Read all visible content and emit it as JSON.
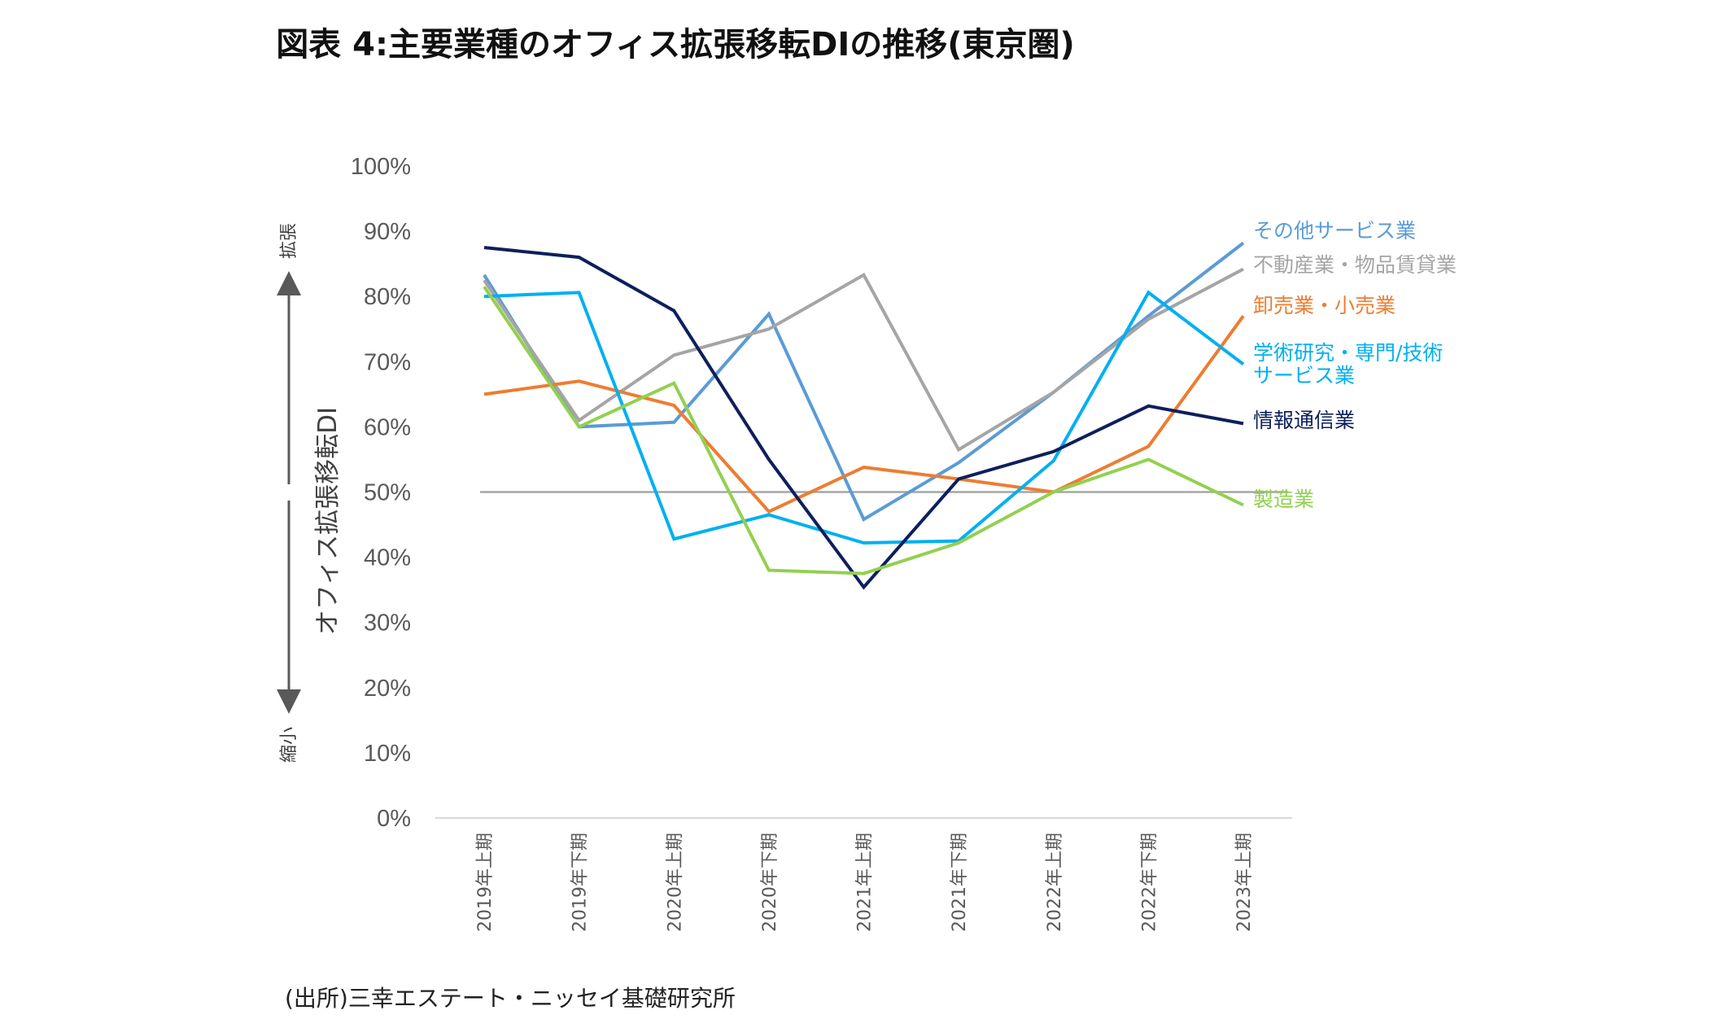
{
  "title": "図表 4:主要業種のオフィス拡張移転DIの推移(東京圏)",
  "source": "(出所)三幸エステート・ニッセイ基礎研究所",
  "chart_data": {
    "type": "line",
    "ylabel": "オフィス拡張移転DI",
    "y_top_note": "拡張",
    "y_bottom_note": "縮小",
    "ylim": [
      0,
      100
    ],
    "y_ticks": [
      "0%",
      "10%",
      "20%",
      "30%",
      "40%",
      "50%",
      "60%",
      "70%",
      "80%",
      "90%",
      "100%"
    ],
    "reference_line": 50,
    "categories": [
      "2019年上期",
      "2019年下期",
      "2020年上期",
      "2020年下期",
      "2021年上期",
      "2021年下期",
      "2022年上期",
      "2022年下期",
      "2023年上期"
    ],
    "series": [
      {
        "name": "その他サービス業",
        "color": "#5B9BD5",
        "values": [
          83.3,
          60,
          60.7,
          77.3,
          45.8,
          54.5,
          65.3,
          77,
          88.2
        ]
      },
      {
        "name": "不動産業・物品賃貸業",
        "color": "#A5A5A5",
        "values": [
          82.5,
          61,
          71,
          75,
          83.3,
          56.5,
          65.3,
          76.5,
          84.2
        ]
      },
      {
        "name": "卸売業・小売業",
        "color": "#ED7D31",
        "values": [
          65,
          67,
          63.3,
          47,
          53.8,
          52,
          50,
          57,
          77
        ]
      },
      {
        "name": "学術研究・専門/技術サービス業",
        "label_lines": [
          "学術研究・専門/技術",
          "サービス業"
        ],
        "color": "#00B0F0",
        "values": [
          80,
          80.6,
          42.8,
          46.5,
          42.2,
          42.5,
          54.8,
          80.6,
          69.6
        ]
      },
      {
        "name": "情報通信業",
        "color": "#0D1F5C",
        "values": [
          87.5,
          86,
          77.8,
          55,
          35.4,
          52,
          56.2,
          63.2,
          60.5
        ]
      },
      {
        "name": "製造業",
        "color": "#92D050",
        "values": [
          81.5,
          60,
          66.7,
          38,
          37.5,
          42.2,
          50,
          55,
          48
        ]
      }
    ]
  }
}
